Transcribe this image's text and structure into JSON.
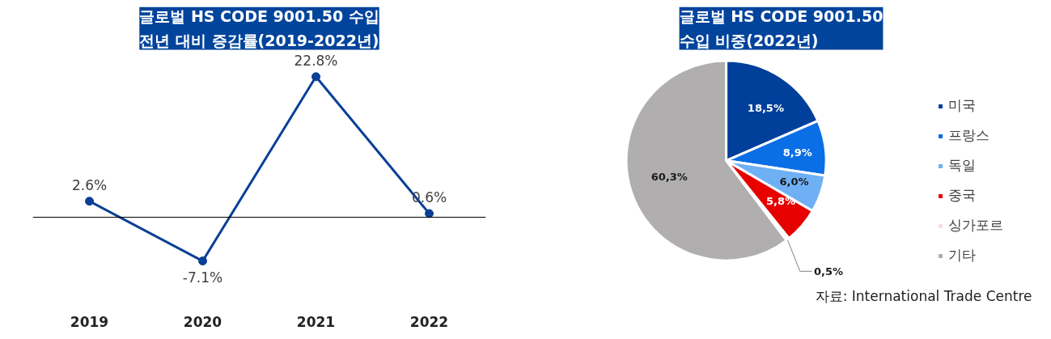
{
  "chart_data": [
    {
      "type": "line",
      "title": "글로벌 HS CODE 9001.50 수입\n전년 대비 증감률(2019-2022년)",
      "categories": [
        "2019",
        "2020",
        "2021",
        "2022"
      ],
      "series": [
        {
          "color": "#0a3f96",
          "values": [
            2.6,
            -7.1,
            22.8,
            0.6
          ],
          "value_labels": [
            "2.6%",
            "-7.1%",
            "22.8%",
            "0.6%"
          ]
        }
      ],
      "ref_lines": [
        {
          "axis": "y",
          "value": 0,
          "color": "#000000"
        }
      ],
      "marker": "circle",
      "tick_labels": "x",
      "grid": false
    },
    {
      "type": "pie",
      "title": "글로벌 HS CODE 9001.50\n수입 비중(2022년)",
      "categories": [
        "미국",
        "프랑스",
        "독일",
        "중국",
        "싱가포르",
        "기타"
      ],
      "values": [
        18.5,
        8.9,
        6.0,
        5.8,
        0.5,
        60.3
      ],
      "colors": [
        "#003f9a",
        "#0a6ee6",
        "#6fb0f5",
        "#e60000",
        "#fadcdc",
        "#b0aeae"
      ],
      "value_labels": [
        "18,5%",
        "8,9%",
        "6,0%",
        "5,8%",
        "0,5%",
        "60,3%"
      ],
      "legend": "right",
      "annotations": [
        "자료: International Trade Centre"
      ]
    }
  ]
}
